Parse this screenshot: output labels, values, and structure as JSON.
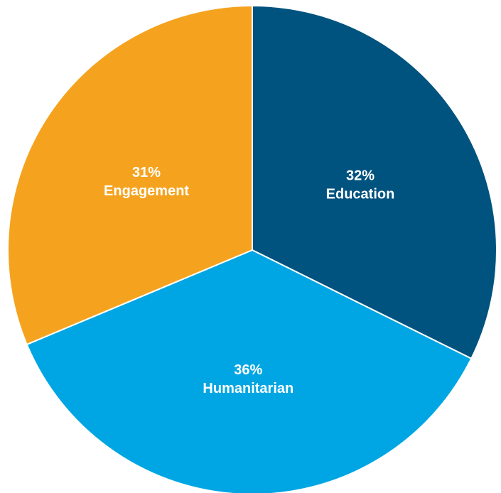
{
  "chart_data": {
    "type": "pie",
    "slices": [
      {
        "label": "Education",
        "value": 32,
        "display": "32%",
        "color": "#00527f"
      },
      {
        "label": "Humanitarian",
        "value": 36,
        "display": "36%",
        "color": "#00a6e3"
      },
      {
        "label": "Engagement",
        "value": 31,
        "display": "31%",
        "color": "#f5a31e"
      }
    ],
    "start_angle_deg": 0,
    "direction": "clockwise",
    "legend": "none",
    "labels": "inside-slices"
  }
}
